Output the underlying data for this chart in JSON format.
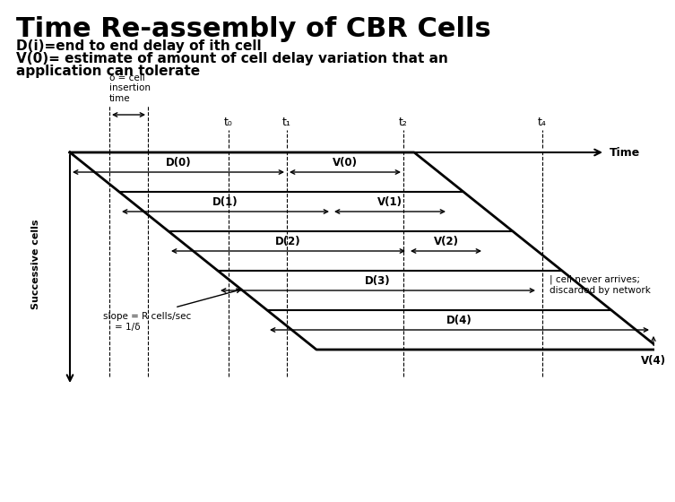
{
  "title": "Time Re-assembly of CBR Cells",
  "subtitle_line1": "D(i)=end to end delay of ith cell",
  "subtitle_line2": "V(0)= estimate of amount of cell delay variation that an",
  "subtitle_line3": "application can tolerate",
  "bg_color": "#ffffff",
  "title_fontsize": 22,
  "subtitle_fontsize": 11,
  "time_axis_label": "Time",
  "successive_cells_label": "Successive cells",
  "delta_label": "δ = cell\ninsertion\ntime",
  "slope_label": "slope = R cells/sec\n    = 1/δ",
  "cell_never_label": "| cell never arrives;\ndiscarded by network",
  "t_labels": [
    "t₀",
    "t₁",
    "t₂",
    "t₄"
  ],
  "d_labels": [
    "D(0)",
    "D(1)",
    "D(2)",
    "D(3)",
    "D(4)"
  ],
  "v_labels": [
    "V(0)",
    "V(1)",
    "V(2)",
    "V(4)"
  ],
  "parallelogram_color": "#000000"
}
